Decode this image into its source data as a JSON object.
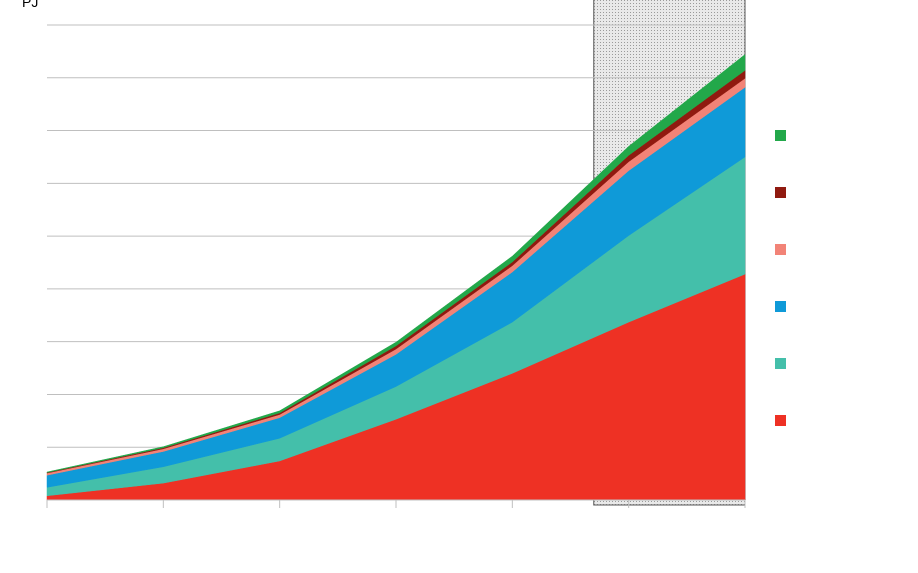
{
  "chart_data": {
    "type": "area",
    "stacked": true,
    "unit_label": "PJ",
    "title": "",
    "xlabel": "",
    "ylabel": "",
    "x": [
      0,
      1,
      2,
      3,
      4,
      5,
      6
    ],
    "ylim": [
      0,
      9
    ],
    "grid": true,
    "projection_shaded_from_x": 4.7,
    "legend_position": "right",
    "series": [
      {
        "color": "#ee3124",
        "values": [
          0.08,
          0.32,
          0.74,
          1.53,
          2.4,
          3.37,
          4.28
        ]
      },
      {
        "color": "#44bfaa",
        "values": [
          0.16,
          0.31,
          0.43,
          0.62,
          0.97,
          1.64,
          2.22
        ]
      },
      {
        "color": "#0f9ad8",
        "values": [
          0.23,
          0.29,
          0.39,
          0.61,
          0.95,
          1.23,
          1.32
        ]
      },
      {
        "color": "#f28377",
        "values": [
          0.04,
          0.05,
          0.06,
          0.1,
          0.12,
          0.17,
          0.17
        ]
      },
      {
        "color": "#901a10",
        "values": [
          0.01,
          0.02,
          0.03,
          0.06,
          0.07,
          0.12,
          0.15
        ]
      },
      {
        "color": "#22a84a",
        "values": [
          0.01,
          0.02,
          0.04,
          0.07,
          0.11,
          0.17,
          0.3
        ]
      }
    ]
  }
}
